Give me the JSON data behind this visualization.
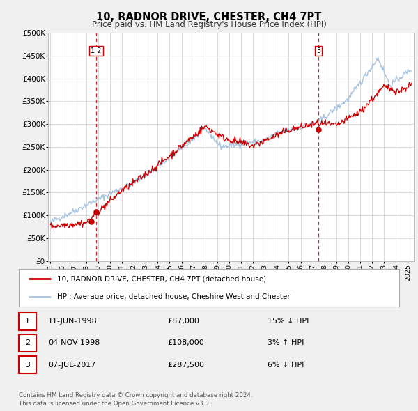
{
  "title": "10, RADNOR DRIVE, CHESTER, CH4 7PT",
  "subtitle": "Price paid vs. HM Land Registry's House Price Index (HPI)",
  "hpi_color": "#a8c4e0",
  "price_color": "#cc0000",
  "dashed_color": "#cc0000",
  "background_color": "#f0f0f0",
  "plot_bg_color": "#ffffff",
  "ylim": [
    0,
    500000
  ],
  "yticks": [
    0,
    50000,
    100000,
    150000,
    200000,
    250000,
    300000,
    350000,
    400000,
    450000,
    500000
  ],
  "ytick_labels": [
    "£0",
    "£50K",
    "£100K",
    "£150K",
    "£200K",
    "£250K",
    "£300K",
    "£350K",
    "£400K",
    "£450K",
    "£500K"
  ],
  "xlim_start": 1994.8,
  "xlim_end": 2025.5,
  "xtick_years": [
    1995,
    1996,
    1997,
    1998,
    1999,
    2000,
    2001,
    2002,
    2003,
    2004,
    2005,
    2006,
    2007,
    2008,
    2009,
    2010,
    2011,
    2012,
    2013,
    2014,
    2015,
    2016,
    2017,
    2018,
    2019,
    2020,
    2021,
    2022,
    2023,
    2024,
    2025
  ],
  "purchases": [
    {
      "year": 1998.44,
      "price": 87000
    },
    {
      "year": 1998.84,
      "price": 108000
    },
    {
      "year": 2017.51,
      "price": 287500
    }
  ],
  "vline1_x": 1998.84,
  "vline2_x": 2017.51,
  "legend_entries": [
    "10, RADNOR DRIVE, CHESTER, CH4 7PT (detached house)",
    "HPI: Average price, detached house, Cheshire West and Chester"
  ],
  "table_rows": [
    {
      "num": "1",
      "date": "11-JUN-1998",
      "price": "£87,000",
      "hpi": "15% ↓ HPI"
    },
    {
      "num": "2",
      "date": "04-NOV-1998",
      "price": "£108,000",
      "hpi": "3% ↑ HPI"
    },
    {
      "num": "3",
      "date": "07-JUL-2017",
      "price": "£287,500",
      "hpi": "6% ↓ HPI"
    }
  ],
  "footer_lines": [
    "Contains HM Land Registry data © Crown copyright and database right 2024.",
    "This data is licensed under the Open Government Licence v3.0."
  ]
}
